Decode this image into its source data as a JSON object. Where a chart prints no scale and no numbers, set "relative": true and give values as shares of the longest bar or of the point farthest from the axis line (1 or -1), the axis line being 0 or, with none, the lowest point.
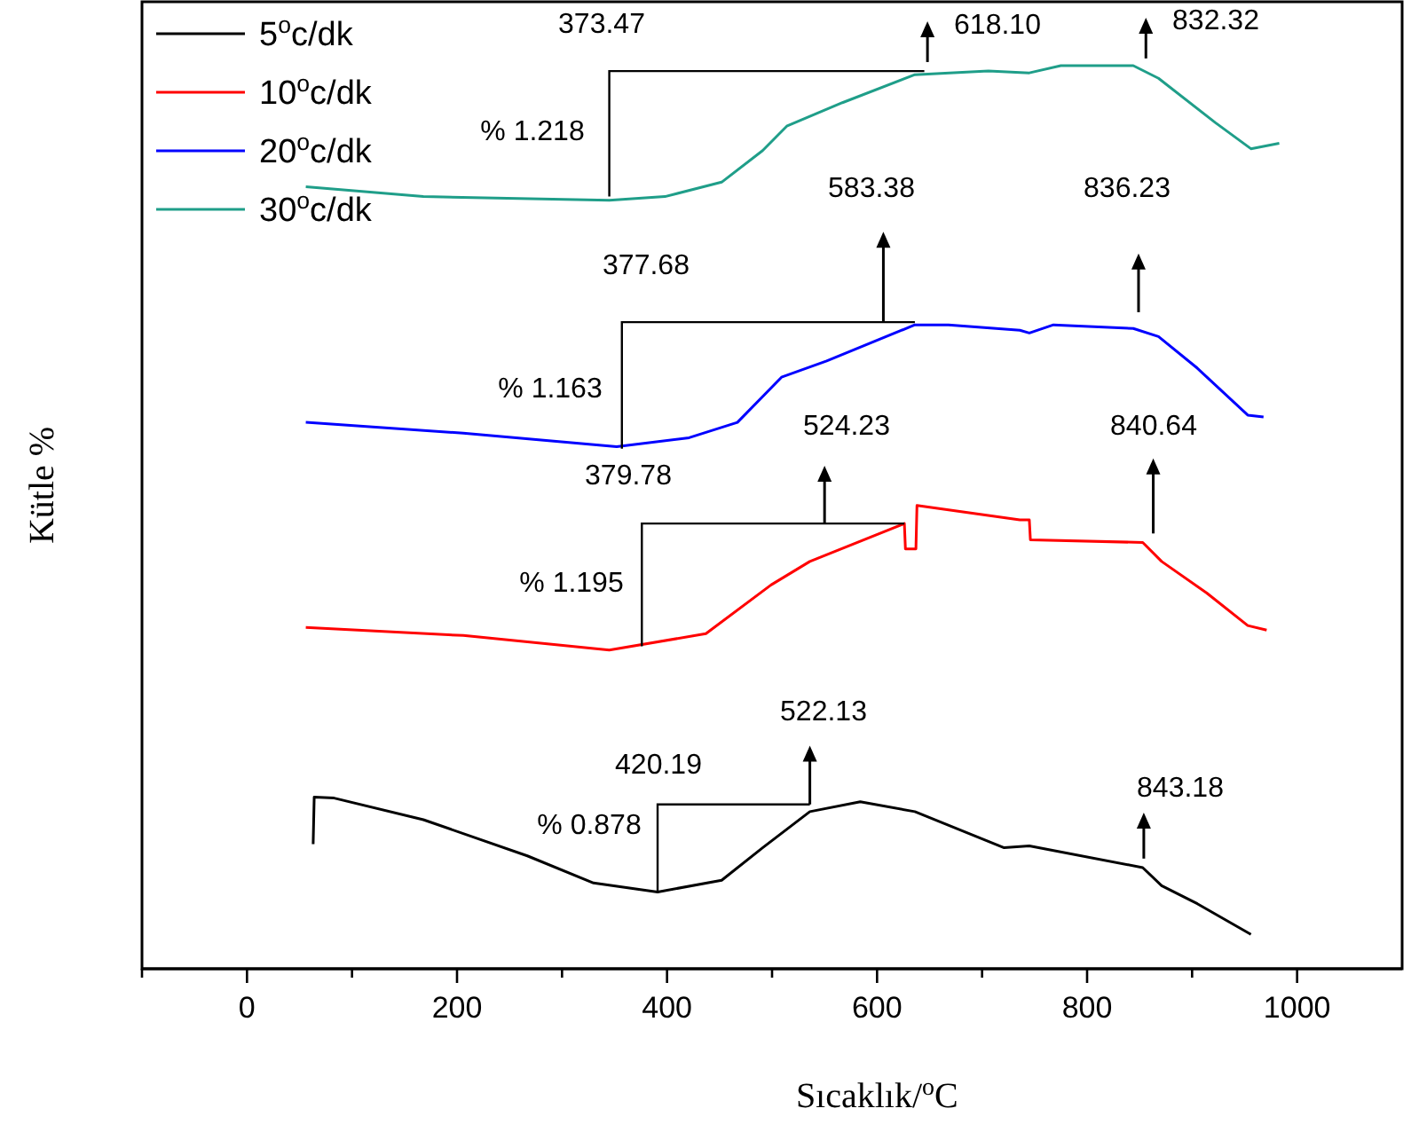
{
  "chart_data": {
    "type": "line",
    "relative": true,
    "xlabel": "Sıcaklık/$^{o}$C",
    "ylabel": "Kütle %",
    "legend": "top left",
    "grid": false,
    "tick_labels": "x",
    "xlim": [
      -100,
      1100
    ],
    "xticks": [
      {
        "value": -100,
        "label": null
      },
      0,
      {
        "value": 100,
        "label": null
      },
      200,
      {
        "value": 300,
        "label": null
      },
      400,
      {
        "value": 500,
        "label": null
      },
      600,
      {
        "value": 700,
        "label": null
      },
      800,
      {
        "value": 900,
        "label": null
      },
      1000
    ],
    "series": [
      {
        "name": "5$^{o}$c/dk",
        "color": "#000000",
        "x": [
          63,
          64,
          83,
          168,
          267,
          330,
          391,
          452,
          491,
          536,
          584,
          636,
          721,
          745,
          853,
          871,
          905,
          956
        ],
        "values": [
          0.138,
          0.19,
          0.189,
          0.165,
          0.125,
          0.095,
          0.085,
          0.098,
          0.134,
          0.174,
          0.185,
          0.174,
          0.134,
          0.136,
          0.112,
          0.092,
          0.072,
          0.038
        ]
      },
      {
        "name": "10$^{o}$c/dk",
        "color": "#ff0000",
        "x": [
          56,
          206,
          345,
          437,
          499,
          536,
          626,
          627,
          637,
          638,
          736,
          745,
          746,
          853,
          871,
          914,
          953,
          971
        ],
        "values": [
          0.378,
          0.369,
          0.353,
          0.371,
          0.425,
          0.451,
          0.493,
          0.465,
          0.465,
          0.513,
          0.497,
          0.497,
          0.475,
          0.472,
          0.451,
          0.416,
          0.38,
          0.375
        ]
      },
      {
        "name": "20$^{o}$c/dk",
        "color": "#0000ff",
        "x": [
          56,
          206,
          352,
          421,
          467,
          509,
          552,
          636,
          668,
          736,
          745,
          768,
          844,
          868,
          905,
          953,
          968
        ],
        "values": [
          0.605,
          0.593,
          0.578,
          0.588,
          0.605,
          0.655,
          0.673,
          0.713,
          0.713,
          0.707,
          0.704,
          0.713,
          0.709,
          0.7,
          0.665,
          0.613,
          0.611
        ]
      },
      {
        "name": "30$^{o}$c/dk",
        "color": "#1f9e89",
        "x": [
          56,
          168,
          345,
          398,
          452,
          491,
          514,
          567,
          636,
          706,
          745,
          775,
          844,
          868,
          922,
          956,
          983
        ],
        "values": [
          0.866,
          0.855,
          0.851,
          0.855,
          0.871,
          0.906,
          0.933,
          0.959,
          0.99,
          0.994,
          0.992,
          1.0,
          1.0,
          0.986,
          0.937,
          0.908,
          0.914
        ]
      }
    ],
    "annotations": [
      "373.47",
      "618.10",
      "832.32",
      "% 1.218",
      "583.38",
      "836.23",
      "377.68",
      "% 1.163",
      "524.23",
      "840.64",
      "379.78",
      "% 1.195",
      "522.13",
      "420.19",
      "% 0.878",
      "843.18"
    ]
  }
}
